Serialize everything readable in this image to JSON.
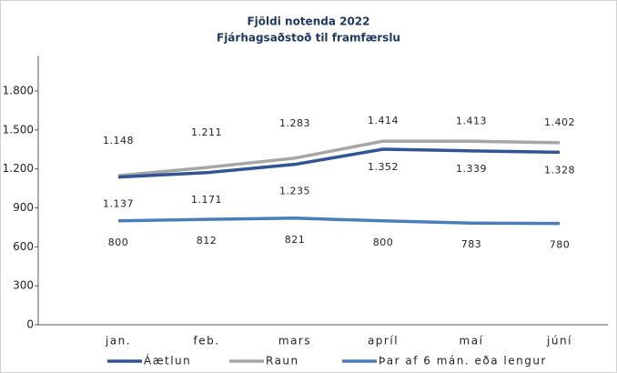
{
  "chart_data": {
    "type": "line",
    "title": "Fjöldi notenda 2022",
    "subtitle": "Fjárhagsaðstoð til framfærslu",
    "categories": [
      "jan.",
      "feb.",
      "mars",
      "apríl",
      "maí",
      "júní"
    ],
    "series": [
      {
        "name": "Áætlun",
        "color": "#2f5597",
        "values": [
          1137,
          1171,
          1235,
          1352,
          1339,
          1328
        ],
        "value_labels": [
          "1.137",
          "1.171",
          "1.235",
          "1.352",
          "1.339",
          "1.328"
        ]
      },
      {
        "name": "Raun",
        "color": "#a6a6a6",
        "values": [
          1148,
          1211,
          1283,
          1414,
          1413,
          1402
        ],
        "value_labels": [
          "1.148",
          "1.211",
          "1.283",
          "1.414",
          "1.413",
          "1.402"
        ]
      },
      {
        "name": "Þar af 6 mán. eða lengur",
        "color": "#4a7ebb",
        "values": [
          800,
          812,
          821,
          800,
          783,
          780
        ]
      }
    ],
    "ylim": [
      0,
      1800
    ],
    "yticks": [
      0,
      300,
      600,
      900,
      {
        "value": 1200,
        "label": "1.200"
      },
      {
        "value": 1500,
        "label": "1.500"
      },
      {
        "value": 1800,
        "label": "1.800"
      }
    ]
  }
}
